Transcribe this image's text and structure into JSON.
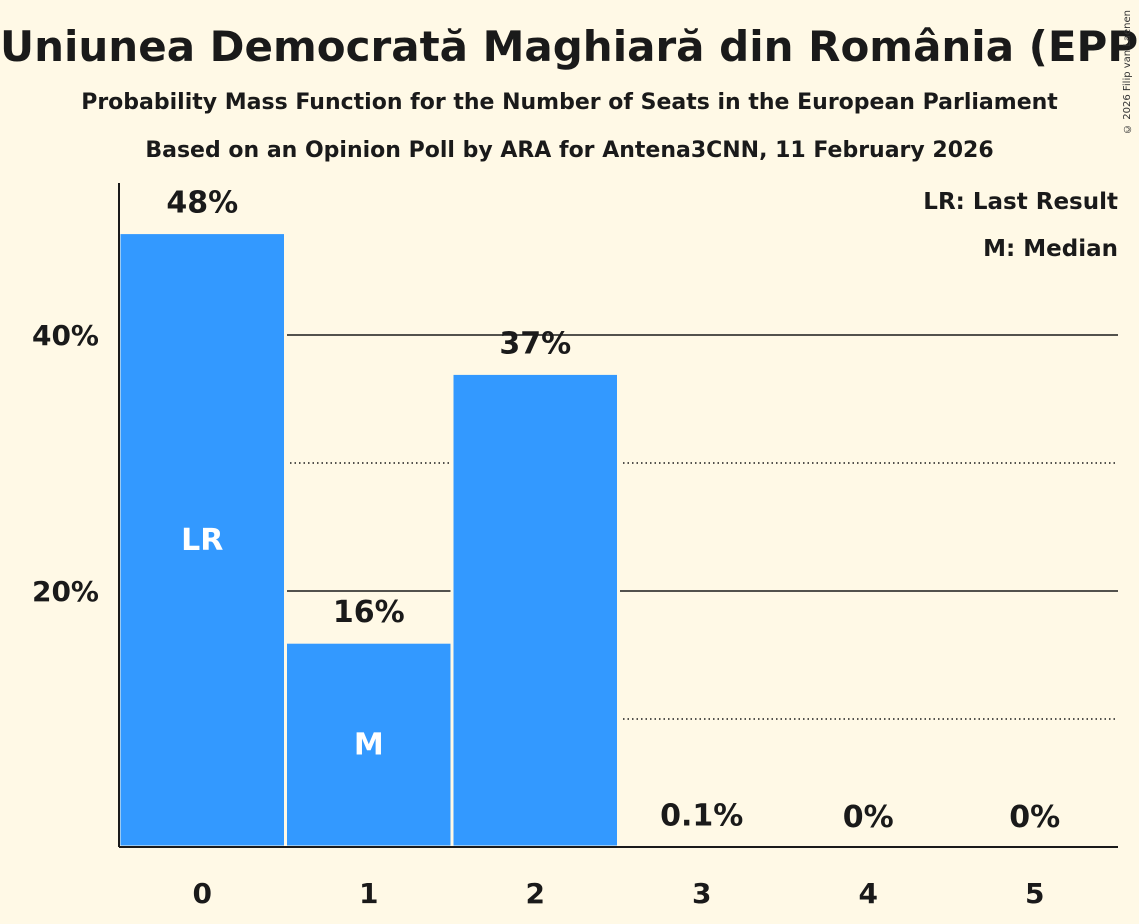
{
  "title": "Uniunea Democrată Maghiară din România (EPP)",
  "subtitle1": "Probability Mass Function for the Number of Seats in the European Parliament",
  "subtitle2": "Based on an Opinion Poll by ARA for Antena3CNN, 11 February 2026",
  "copyright": "© 2026 Filip van Laenen",
  "colors": {
    "bar": "#3399ff",
    "background": "#fff9e6",
    "text": "#1a1a1a"
  },
  "chart_data": {
    "type": "bar",
    "title": "Uniunea Democrată Maghiară din România (EPP)",
    "xlabel": "",
    "ylabel": "",
    "categories": [
      "0",
      "1",
      "2",
      "3",
      "4",
      "5"
    ],
    "values": [
      48,
      16,
      37,
      0.1,
      0,
      0
    ],
    "value_labels": [
      "48%",
      "16%",
      "37%",
      "0.1%",
      "0%",
      "0%"
    ],
    "ylim": [
      0,
      52
    ],
    "yticks": [
      20,
      40
    ],
    "ytick_labels": [
      "20%",
      "40%"
    ],
    "minor_gridlines": [
      10,
      30
    ],
    "bar_markers": [
      {
        "category_index": 0,
        "label": "LR"
      },
      {
        "category_index": 1,
        "label": "M"
      }
    ],
    "legend": [
      "LR: Last Result",
      "M: Median"
    ],
    "legend_position": "top-right"
  }
}
